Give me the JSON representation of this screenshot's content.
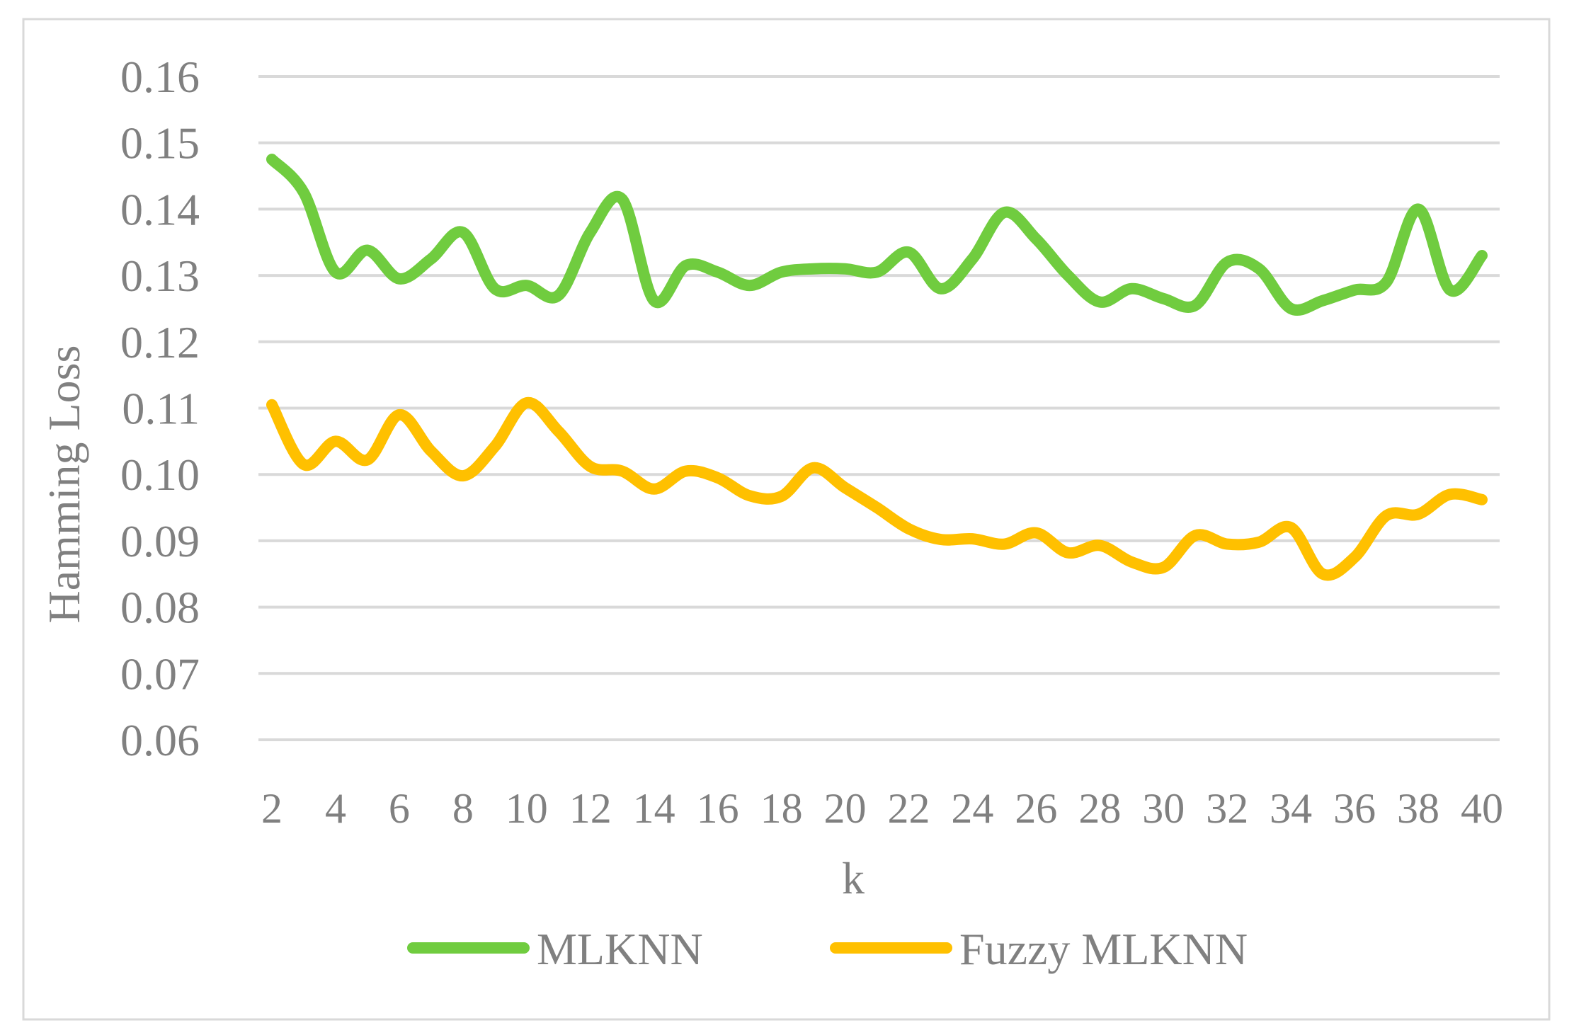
{
  "chart_data": {
    "type": "line",
    "xlabel": "k",
    "ylabel": "Hamming Loss",
    "ylim": [
      0.06,
      0.16
    ],
    "yticks": [
      "0.06",
      "0.07",
      "0.08",
      "0.09",
      "0.10",
      "0.11",
      "0.12",
      "0.13",
      "0.14",
      "0.15",
      "0.16"
    ],
    "x": [
      2,
      3,
      4,
      5,
      6,
      7,
      8,
      9,
      10,
      11,
      12,
      13,
      14,
      15,
      16,
      17,
      18,
      19,
      20,
      21,
      22,
      23,
      24,
      25,
      26,
      27,
      28,
      29,
      30,
      31,
      32,
      33,
      34,
      35,
      36,
      37,
      38,
      39,
      40
    ],
    "xticks": [
      "2",
      "4",
      "6",
      "8",
      "10",
      "12",
      "14",
      "16",
      "18",
      "20",
      "22",
      "24",
      "26",
      "28",
      "30",
      "32",
      "34",
      "36",
      "38",
      "40"
    ],
    "grid": true,
    "legend_position": "bottom",
    "series": [
      {
        "name": "MLKNN",
        "color": "#70CC3F",
        "values": [
          0.1475,
          0.1425,
          0.1305,
          0.1338,
          0.1295,
          0.1325,
          0.1365,
          0.128,
          0.1285,
          0.127,
          0.1365,
          0.1415,
          0.1262,
          0.1315,
          0.1305,
          0.1285,
          0.1305,
          0.131,
          0.131,
          0.1305,
          0.1335,
          0.128,
          0.1325,
          0.1395,
          0.1355,
          0.13,
          0.126,
          0.128,
          0.1265,
          0.1255,
          0.132,
          0.131,
          0.125,
          0.1262,
          0.1278,
          0.129,
          0.14,
          0.1278,
          0.133
        ]
      },
      {
        "name": "Fuzzy MLKNN",
        "color": "#FFC000",
        "values": [
          0.1105,
          0.1015,
          0.105,
          0.1022,
          0.109,
          0.1035,
          0.0998,
          0.1042,
          0.1108,
          0.1065,
          0.1012,
          0.1005,
          0.0978,
          0.1005,
          0.0995,
          0.0968,
          0.0967,
          0.101,
          0.098,
          0.095,
          0.0918,
          0.0902,
          0.0903,
          0.0895,
          0.0912,
          0.0882,
          0.0893,
          0.0868,
          0.086,
          0.0908,
          0.0895,
          0.0898,
          0.092,
          0.085,
          0.0875,
          0.0938,
          0.094,
          0.097,
          0.0962
        ]
      }
    ]
  }
}
